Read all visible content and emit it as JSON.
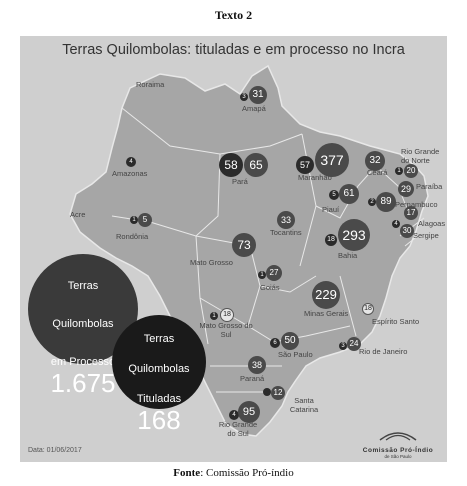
{
  "caption": "Texto 2",
  "map_title": "Terras Quilombolas: tituladas e em processo no Incra",
  "totals": {
    "processo_label_1": "Terras",
    "processo_label_2": "Quilombolas",
    "processo_label_3": "em Processo",
    "processo_value": "1.675",
    "tituladas_label_1": "Terras",
    "tituladas_label_2": "Quilombolas",
    "tituladas_label_3": "Tituladas",
    "tituladas_value": "168"
  },
  "states": [
    {
      "name": "Roraima",
      "tituladas": "",
      "processo": ""
    },
    {
      "name": "Amapá",
      "tituladas": "3",
      "processo": "31"
    },
    {
      "name": "Amazonas",
      "tituladas": "",
      "processo": "4"
    },
    {
      "name": "Pará",
      "tituladas": "58",
      "processo": "65"
    },
    {
      "name": "Maranhão",
      "tituladas": "57",
      "processo": "377"
    },
    {
      "name": "Ceará",
      "tituladas": "",
      "processo": "32"
    },
    {
      "name": "Rio Grande do Norte",
      "tituladas": "1",
      "processo": "20"
    },
    {
      "name": "Paraíba",
      "tituladas": "",
      "processo": "29"
    },
    {
      "name": "Piauí",
      "tituladas": "5",
      "processo": "61"
    },
    {
      "name": "Pernambuco",
      "tituladas": "2",
      "processo": "89"
    },
    {
      "name": "Alagoas",
      "tituladas": "",
      "processo": "17"
    },
    {
      "name": "Sergipe",
      "tituladas": "4",
      "processo": "30"
    },
    {
      "name": "Acre",
      "tituladas": "",
      "processo": ""
    },
    {
      "name": "Rondônia",
      "tituladas": "1",
      "processo": "5"
    },
    {
      "name": "Tocantins",
      "tituladas": "",
      "processo": "33"
    },
    {
      "name": "Bahia",
      "tituladas": "18",
      "processo": "293"
    },
    {
      "name": "Mato Grosso",
      "tituladas": "",
      "processo": "73"
    },
    {
      "name": "Goiás",
      "tituladas": "1",
      "processo": "27"
    },
    {
      "name": "Minas Gerais",
      "tituladas": "",
      "processo": "229"
    },
    {
      "name": "Espírito Santo",
      "tituladas": "",
      "processo": "18"
    },
    {
      "name": "Mato Grosso do Sul",
      "tituladas": "1",
      "processo": "18"
    },
    {
      "name": "São Paulo",
      "tituladas": "6",
      "processo": "50"
    },
    {
      "name": "Rio de Janeiro",
      "tituladas": "3",
      "processo": "24"
    },
    {
      "name": "Paraná",
      "tituladas": "",
      "processo": "38"
    },
    {
      "name": "Santa Catarina",
      "tituladas": "",
      "processo": "12"
    },
    {
      "name": "Rio Grande do Sul",
      "tituladas": "4",
      "processo": "95"
    }
  ],
  "date_note": "Data: 01/06/2017",
  "org": {
    "name": "Comissão Pró-Índio",
    "sub": "de São Paulo"
  },
  "source": {
    "label": "Fonte",
    "text": ": Comissão Pró-índio"
  },
  "colors": {
    "panel": "#cfcfcf",
    "map": "#a6a6a6",
    "border": "#e8e8e8",
    "badge_dark": "#2b2b2b"
  }
}
